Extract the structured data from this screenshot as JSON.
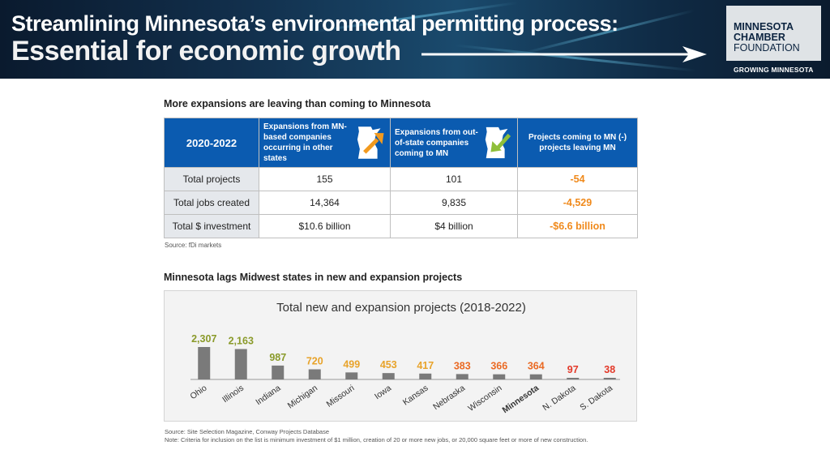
{
  "banner": {
    "title_line1": "Streamlining Minnesota’s environmental permitting process:",
    "title_line2": "Essential for economic growth",
    "logo_line1": "MINNESOTA",
    "logo_line2": "CHAMBER",
    "logo_line3": "FOUNDATION",
    "tagline": "GROWING MINNESOTA"
  },
  "table_section": {
    "title": "More expansions are leaving than coming to Minnesota",
    "header": {
      "period": "2020-2022",
      "col1": "Expansions from MN-based companies occurring in other states",
      "col2": "Expansions from out-of-state companies coming to MN",
      "col3": "Projects coming to MN (-) projects leaving MN"
    },
    "rows": [
      {
        "label": "Total projects",
        "out": "155",
        "in": "101",
        "net": "-54"
      },
      {
        "label": "Total jobs created",
        "out": "14,364",
        "in": "9,835",
        "net": "-4,529"
      },
      {
        "label": "Total $ investment",
        "out": "$10.6 billion",
        "in": "$4 billion",
        "net": "-$6.6 billion"
      }
    ],
    "source": "Source: fDi markets"
  },
  "chart_section": {
    "title": "Minnesota lags Midwest states in new and expansion projects",
    "source": "Source: Site Selection Magazine, Conway Projects Database",
    "note": "Note: Criteria for inclusion on the list is minimum investment of $1 million, creation of 20 or more new jobs, or 20,000 square feet or more of new construction."
  },
  "chart_data": {
    "type": "bar",
    "title": "Total new and expansion projects (2018-2022)",
    "categories": [
      "Ohio",
      "Illinois",
      "Indiana",
      "Michigan",
      "Missouri",
      "Iowa",
      "Kansas",
      "Nebraska",
      "Wisconsin",
      "Minnesota",
      "N. Dakota",
      "S. Dakota"
    ],
    "values": [
      2307,
      2163,
      987,
      720,
      499,
      453,
      417,
      383,
      366,
      364,
      97,
      38
    ],
    "value_labels": [
      "2,307",
      "2,163",
      "987",
      "720",
      "499",
      "453",
      "417",
      "383",
      "366",
      "364",
      "97",
      "38"
    ],
    "label_colors": [
      "#8a9a2a",
      "#8a9a2a",
      "#8a9a2a",
      "#e8a32a",
      "#e8a32a",
      "#e8a32a",
      "#e8a32a",
      "#ea6a24",
      "#ea6a24",
      "#ea6a24",
      "#e33a2a",
      "#e33a2a"
    ],
    "highlight_category": "Minnesota",
    "bar_color": "#7a7a7a",
    "grid": false,
    "legend": "none"
  },
  "colors": {
    "header_blue": "#0b5bb0",
    "negative_orange": "#f08a1c",
    "row_label_bg": "#e5e8ec"
  }
}
